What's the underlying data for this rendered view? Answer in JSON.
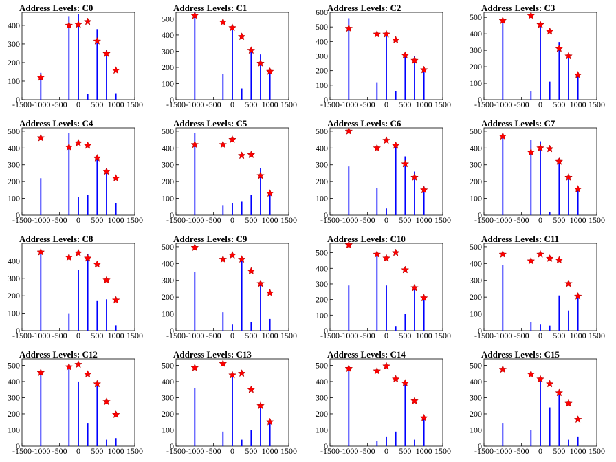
{
  "chart_data": [
    {
      "type": "histogram",
      "title": "Address Levels: C0",
      "xlim": [
        -1500,
        1500
      ],
      "ylim": [
        0,
        470
      ],
      "yticks": [
        0,
        100,
        200,
        300,
        400
      ],
      "xticks": [
        -1500,
        -1000,
        -500,
        0,
        500,
        1000,
        1500
      ],
      "bars": [
        [
          -1000,
          145
        ],
        [
          -250,
          450
        ],
        [
          0,
          460
        ],
        [
          250,
          30
        ],
        [
          500,
          380
        ],
        [
          750,
          270
        ],
        [
          1000,
          35
        ]
      ],
      "peaks": [
        [
          -1000,
          120
        ],
        [
          -250,
          400
        ],
        [
          0,
          405
        ],
        [
          250,
          420
        ],
        [
          500,
          315
        ],
        [
          750,
          248
        ],
        [
          1000,
          158
        ]
      ]
    },
    {
      "type": "histogram",
      "title": "Address Levels: C1",
      "xlim": [
        -1500,
        1500
      ],
      "ylim": [
        0,
        540
      ],
      "yticks": [
        0,
        100,
        200,
        300,
        400,
        500
      ],
      "xticks": [
        -1500,
        -1000,
        -500,
        0,
        500,
        1000,
        1500
      ],
      "bars": [
        [
          -1000,
          540
        ],
        [
          -250,
          160
        ],
        [
          0,
          450
        ],
        [
          250,
          70
        ],
        [
          500,
          300
        ],
        [
          750,
          280
        ],
        [
          1000,
          180
        ]
      ],
      "peaks": [
        [
          -1000,
          520
        ],
        [
          -250,
          480
        ],
        [
          0,
          445
        ],
        [
          250,
          390
        ],
        [
          500,
          305
        ],
        [
          750,
          225
        ],
        [
          1000,
          175
        ]
      ]
    },
    {
      "type": "histogram",
      "title": "Address Levels: C2",
      "xlim": [
        -1500,
        1500
      ],
      "ylim": [
        0,
        600
      ],
      "yticks": [
        0,
        100,
        200,
        300,
        400,
        500,
        600
      ],
      "xticks": [
        -1500,
        -1000,
        -500,
        0,
        500,
        1000,
        1500
      ],
      "bars": [
        [
          -1000,
          560
        ],
        [
          -250,
          120
        ],
        [
          0,
          450
        ],
        [
          250,
          60
        ],
        [
          500,
          320
        ],
        [
          750,
          300
        ],
        [
          1000,
          210
        ]
      ],
      "peaks": [
        [
          -1000,
          490
        ],
        [
          -250,
          450
        ],
        [
          0,
          450
        ],
        [
          250,
          410
        ],
        [
          500,
          305
        ],
        [
          750,
          270
        ],
        [
          1000,
          205
        ]
      ]
    },
    {
      "type": "histogram",
      "title": "Address Levels: C3",
      "xlim": [
        -1500,
        1500
      ],
      "ylim": [
        0,
        530
      ],
      "yticks": [
        0,
        100,
        200,
        300,
        400,
        500
      ],
      "xticks": [
        -1500,
        -1000,
        -500,
        0,
        500,
        1000,
        1500
      ],
      "bars": [
        [
          -1000,
          490
        ],
        [
          -250,
          50
        ],
        [
          0,
          470
        ],
        [
          250,
          110
        ],
        [
          500,
          350
        ],
        [
          750,
          280
        ],
        [
          1000,
          160
        ]
      ],
      "peaks": [
        [
          -1000,
          480
        ],
        [
          -250,
          510
        ],
        [
          0,
          455
        ],
        [
          250,
          415
        ],
        [
          500,
          310
        ],
        [
          750,
          265
        ],
        [
          1000,
          150
        ]
      ]
    },
    {
      "type": "histogram",
      "title": "Address Levels: C4",
      "xlim": [
        -1500,
        1500
      ],
      "ylim": [
        0,
        520
      ],
      "yticks": [
        0,
        100,
        200,
        300,
        400,
        500
      ],
      "xticks": [
        -1500,
        -1000,
        -500,
        0,
        500,
        1000,
        1500
      ],
      "bars": [
        [
          -1000,
          220
        ],
        [
          -250,
          490
        ],
        [
          0,
          110
        ],
        [
          250,
          120
        ],
        [
          500,
          350
        ],
        [
          750,
          280
        ],
        [
          1000,
          70
        ]
      ],
      "peaks": [
        [
          -1000,
          460
        ],
        [
          -250,
          405
        ],
        [
          0,
          430
        ],
        [
          250,
          415
        ],
        [
          500,
          340
        ],
        [
          750,
          260
        ],
        [
          1000,
          220
        ]
      ]
    },
    {
      "type": "histogram",
      "title": "Address Levels: C5",
      "xlim": [
        -1500,
        1500
      ],
      "ylim": [
        0,
        520
      ],
      "yticks": [
        0,
        100,
        200,
        300,
        400,
        500
      ],
      "xticks": [
        -1500,
        -1000,
        -500,
        0,
        500,
        1000,
        1500
      ],
      "bars": [
        [
          -1000,
          490
        ],
        [
          -250,
          60
        ],
        [
          0,
          70
        ],
        [
          250,
          80
        ],
        [
          500,
          120
        ],
        [
          750,
          280
        ],
        [
          1000,
          140
        ]
      ],
      "peaks": [
        [
          -1000,
          420
        ],
        [
          -250,
          420
        ],
        [
          0,
          450
        ],
        [
          250,
          355
        ],
        [
          500,
          360
        ],
        [
          750,
          235
        ],
        [
          1000,
          130
        ]
      ]
    },
    {
      "type": "histogram",
      "title": "Address Levels: C6",
      "xlim": [
        -1500,
        1500
      ],
      "ylim": [
        0,
        520
      ],
      "yticks": [
        0,
        100,
        200,
        300,
        400,
        500
      ],
      "xticks": [
        -1500,
        -1000,
        -500,
        0,
        500,
        1000,
        1500
      ],
      "bars": [
        [
          -1000,
          290
        ],
        [
          -250,
          160
        ],
        [
          0,
          40
        ],
        [
          250,
          420
        ],
        [
          500,
          350
        ],
        [
          750,
          260
        ],
        [
          1000,
          170
        ]
      ],
      "peaks": [
        [
          -1000,
          500
        ],
        [
          -250,
          400
        ],
        [
          0,
          445
        ],
        [
          250,
          415
        ],
        [
          500,
          305
        ],
        [
          750,
          225
        ],
        [
          1000,
          150
        ]
      ]
    },
    {
      "type": "histogram",
      "title": "Address Levels: C7",
      "xlim": [
        -1500,
        1500
      ],
      "ylim": [
        0,
        520
      ],
      "yticks": [
        0,
        100,
        200,
        300,
        400,
        500
      ],
      "xticks": [
        -1500,
        -1000,
        -500,
        0,
        500,
        1000,
        1500
      ],
      "bars": [
        [
          -1000,
          480
        ],
        [
          -250,
          450
        ],
        [
          0,
          440
        ],
        [
          250,
          20
        ],
        [
          500,
          340
        ],
        [
          750,
          240
        ],
        [
          1000,
          170
        ]
      ],
      "peaks": [
        [
          -1000,
          470
        ],
        [
          -250,
          375
        ],
        [
          0,
          400
        ],
        [
          250,
          395
        ],
        [
          500,
          320
        ],
        [
          750,
          225
        ],
        [
          1000,
          155
        ]
      ]
    },
    {
      "type": "histogram",
      "title": "Address Levels: C8",
      "xlim": [
        -1500,
        1500
      ],
      "ylim": [
        0,
        500
      ],
      "yticks": [
        0,
        100,
        200,
        300,
        400
      ],
      "xticks": [
        -1500,
        -1000,
        -500,
        0,
        500,
        1000,
        1500
      ],
      "bars": [
        [
          -1000,
          460
        ],
        [
          -250,
          100
        ],
        [
          0,
          350
        ],
        [
          250,
          440
        ],
        [
          500,
          170
        ],
        [
          750,
          180
        ],
        [
          1000,
          30
        ]
      ],
      "peaks": [
        [
          -1000,
          450
        ],
        [
          -250,
          420
        ],
        [
          0,
          445
        ],
        [
          250,
          415
        ],
        [
          500,
          380
        ],
        [
          750,
          290
        ],
        [
          1000,
          175
        ]
      ]
    },
    {
      "type": "histogram",
      "title": "Address Levels: C9",
      "xlim": [
        -1500,
        1500
      ],
      "ylim": [
        0,
        520
      ],
      "yticks": [
        0,
        100,
        200,
        300,
        400,
        500
      ],
      "xticks": [
        -1500,
        -1000,
        -500,
        0,
        500,
        1000,
        1500
      ],
      "bars": [
        [
          -1000,
          350
        ],
        [
          -250,
          110
        ],
        [
          0,
          40
        ],
        [
          250,
          420
        ],
        [
          500,
          50
        ],
        [
          750,
          280
        ],
        [
          1000,
          70
        ]
      ],
      "peaks": [
        [
          -1000,
          495
        ],
        [
          -250,
          425
        ],
        [
          0,
          450
        ],
        [
          250,
          425
        ],
        [
          500,
          355
        ],
        [
          750,
          280
        ],
        [
          1000,
          225
        ]
      ]
    },
    {
      "type": "histogram",
      "title": "Address Levels: C10",
      "xlim": [
        -1500,
        1500
      ],
      "ylim": [
        0,
        560
      ],
      "yticks": [
        0,
        100,
        200,
        300,
        400,
        500
      ],
      "xticks": [
        -1500,
        -1000,
        -500,
        0,
        500,
        1000,
        1500
      ],
      "bars": [
        [
          -1000,
          290
        ],
        [
          -250,
          500
        ],
        [
          0,
          290
        ],
        [
          250,
          30
        ],
        [
          500,
          110
        ],
        [
          750,
          270
        ],
        [
          1000,
          220
        ]
      ],
      "peaks": [
        [
          -1000,
          550
        ],
        [
          -250,
          490
        ],
        [
          0,
          465
        ],
        [
          250,
          500
        ],
        [
          500,
          390
        ],
        [
          750,
          275
        ],
        [
          1000,
          210
        ]
      ]
    },
    {
      "type": "histogram",
      "title": "Address Levels: C11",
      "xlim": [
        -1500,
        1500
      ],
      "ylim": [
        0,
        520
      ],
      "yticks": [
        0,
        100,
        200,
        300,
        400,
        500
      ],
      "xticks": [
        -1500,
        -1000,
        -500,
        0,
        500,
        1000,
        1500
      ],
      "bars": [
        [
          -1000,
          390
        ],
        [
          -250,
          50
        ],
        [
          0,
          40
        ],
        [
          250,
          30
        ],
        [
          500,
          210
        ],
        [
          750,
          120
        ],
        [
          1000,
          200
        ]
      ],
      "peaks": [
        [
          -1000,
          455
        ],
        [
          -250,
          415
        ],
        [
          0,
          455
        ],
        [
          250,
          430
        ],
        [
          500,
          420
        ],
        [
          750,
          280
        ],
        [
          1000,
          205
        ]
      ]
    },
    {
      "type": "histogram",
      "title": "Address Levels: C12",
      "xlim": [
        -1500,
        1500
      ],
      "ylim": [
        0,
        540
      ],
      "yticks": [
        0,
        100,
        200,
        300,
        400,
        500
      ],
      "xticks": [
        -1500,
        -1000,
        -500,
        0,
        500,
        1000,
        1500
      ],
      "bars": [
        [
          -1000,
          440
        ],
        [
          -250,
          500
        ],
        [
          0,
          400
        ],
        [
          250,
          140
        ],
        [
          500,
          400
        ],
        [
          750,
          40
        ],
        [
          1000,
          50
        ]
      ],
      "peaks": [
        [
          -1000,
          455
        ],
        [
          -250,
          490
        ],
        [
          0,
          505
        ],
        [
          250,
          445
        ],
        [
          500,
          385
        ],
        [
          750,
          275
        ],
        [
          1000,
          195
        ]
      ]
    },
    {
      "type": "histogram",
      "title": "Address Levels: C13",
      "xlim": [
        -1500,
        1500
      ],
      "ylim": [
        0,
        540
      ],
      "yticks": [
        0,
        100,
        200,
        300,
        400,
        500
      ],
      "xticks": [
        -1500,
        -1000,
        -500,
        0,
        500,
        1000,
        1500
      ],
      "bars": [
        [
          -1000,
          360
        ],
        [
          -250,
          90
        ],
        [
          0,
          450
        ],
        [
          250,
          40
        ],
        [
          500,
          100
        ],
        [
          750,
          260
        ],
        [
          1000,
          150
        ]
      ],
      "peaks": [
        [
          -1000,
          485
        ],
        [
          -250,
          510
        ],
        [
          0,
          440
        ],
        [
          250,
          450
        ],
        [
          500,
          350
        ],
        [
          750,
          250
        ],
        [
          1000,
          150
        ]
      ]
    },
    {
      "type": "histogram",
      "title": "Address Levels: C14",
      "xlim": [
        -1500,
        1500
      ],
      "ylim": [
        0,
        540
      ],
      "yticks": [
        0,
        100,
        200,
        300,
        400,
        500
      ],
      "xticks": [
        -1500,
        -1000,
        -500,
        0,
        500,
        1000,
        1500
      ],
      "bars": [
        [
          -1000,
          480
        ],
        [
          -250,
          30
        ],
        [
          0,
          60
        ],
        [
          250,
          90
        ],
        [
          500,
          400
        ],
        [
          750,
          40
        ],
        [
          1000,
          170
        ]
      ],
      "peaks": [
        [
          -1000,
          480
        ],
        [
          -250,
          465
        ],
        [
          0,
          495
        ],
        [
          250,
          415
        ],
        [
          500,
          390
        ],
        [
          750,
          280
        ],
        [
          1000,
          175
        ]
      ]
    },
    {
      "type": "histogram",
      "title": "Address Levels: C15",
      "xlim": [
        -1500,
        1500
      ],
      "ylim": [
        0,
        540
      ],
      "yticks": [
        0,
        100,
        200,
        300,
        400,
        500
      ],
      "xticks": [
        -1500,
        -1000,
        -500,
        0,
        500,
        1000,
        1500
      ],
      "bars": [
        [
          -1000,
          140
        ],
        [
          -250,
          100
        ],
        [
          0,
          430
        ],
        [
          250,
          240
        ],
        [
          500,
          340
        ],
        [
          750,
          40
        ],
        [
          1000,
          60
        ]
      ],
      "peaks": [
        [
          -1000,
          475
        ],
        [
          -250,
          445
        ],
        [
          0,
          415
        ],
        [
          250,
          385
        ],
        [
          500,
          330
        ],
        [
          750,
          265
        ],
        [
          1000,
          165
        ]
      ]
    }
  ],
  "style": {
    "bar_color": "#0000ff",
    "marker_color": "#ff0000",
    "axis_color": "#000000"
  }
}
